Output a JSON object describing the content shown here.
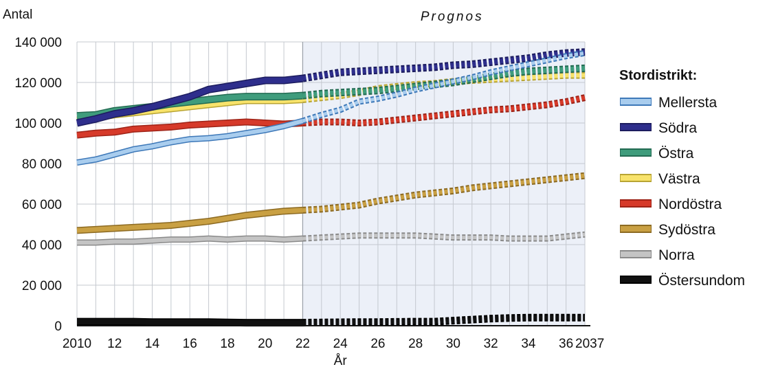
{
  "chart_data": {
    "type": "line",
    "ylabel": "Antal",
    "xlabel": "År",
    "forecast_label": "Prognos",
    "forecast_start": 2022,
    "xlim": [
      2010,
      2037
    ],
    "ylim": [
      0,
      140000
    ],
    "grid": true,
    "x": [
      2010,
      2011,
      2012,
      2013,
      2014,
      2015,
      2016,
      2017,
      2018,
      2019,
      2020,
      2021,
      2022,
      2023,
      2024,
      2025,
      2026,
      2027,
      2028,
      2029,
      2030,
      2031,
      2032,
      2033,
      2034,
      2035,
      2036,
      2037
    ],
    "x_tick_values": [
      2010,
      2012,
      2014,
      2016,
      2018,
      2020,
      2022,
      2024,
      2026,
      2028,
      2030,
      2032,
      2034,
      2036,
      2037
    ],
    "x_tick_labels": [
      "2010",
      "12",
      "14",
      "16",
      "18",
      "20",
      "22",
      "24",
      "26",
      "28",
      "30",
      "32",
      "34",
      "36",
      "2037"
    ],
    "y_tick_values": [
      0,
      20000,
      40000,
      60000,
      80000,
      100000,
      120000,
      140000
    ],
    "y_tick_labels": [
      "0",
      "20 000",
      "40 000",
      "60 000",
      "80 000",
      "100 000",
      "120 000",
      "140 000"
    ],
    "legend_title": "Stordistrikt:",
    "legend_position": "right",
    "series": [
      {
        "name": "Mellersta",
        "color": "#a9cdee",
        "edge": "#3d78b8",
        "width": 7,
        "values": [
          80500,
          82000,
          84500,
          87000,
          88500,
          90500,
          92000,
          92500,
          93500,
          95000,
          96500,
          98500,
          101000,
          104000,
          106500,
          110500,
          112000,
          114000,
          116500,
          118500,
          120500,
          122500,
          125000,
          127000,
          129000,
          131000,
          133000,
          134500
        ]
      },
      {
        "name": "Södra",
        "color": "#2e2e8c",
        "edge": "#1c1c5e",
        "width": 9,
        "values": [
          100000,
          102000,
          104500,
          106000,
          108000,
          110500,
          113000,
          116500,
          118000,
          119500,
          121000,
          121000,
          122000,
          123500,
          125000,
          125500,
          126000,
          126500,
          127000,
          127500,
          128500,
          129000,
          130000,
          131000,
          132000,
          133500,
          134500,
          135000
        ]
      },
      {
        "name": "Östra",
        "color": "#3f9c7c",
        "edge": "#236b52",
        "width": 9,
        "values": [
          103500,
          104000,
          106000,
          107000,
          108000,
          109500,
          110500,
          111500,
          112500,
          113000,
          113000,
          113000,
          113500,
          114500,
          115000,
          115500,
          116000,
          117000,
          118000,
          119000,
          120000,
          121500,
          123000,
          124500,
          125500,
          126000,
          126500,
          127000
        ]
      },
      {
        "name": "Västra",
        "color": "#f8e36b",
        "edge": "#b8a433",
        "width": 8,
        "values": [
          101500,
          102500,
          104000,
          105000,
          106000,
          107000,
          108000,
          109000,
          110000,
          111000,
          111000,
          111000,
          111500,
          112500,
          113500,
          115000,
          117000,
          118000,
          119000,
          119500,
          120500,
          121000,
          121500,
          122000,
          122500,
          123000,
          123500,
          123500
        ]
      },
      {
        "name": "Nordöstra",
        "color": "#d63a2a",
        "edge": "#9e2317",
        "width": 8,
        "values": [
          94000,
          95000,
          95500,
          97000,
          97500,
          98000,
          99000,
          99500,
          100000,
          100500,
          100000,
          99500,
          100000,
          100500,
          100500,
          100000,
          100500,
          101500,
          102500,
          103500,
          104500,
          105500,
          106500,
          107000,
          108000,
          109000,
          110500,
          112500
        ]
      },
      {
        "name": "Sydöstra",
        "color": "#c9a043",
        "edge": "#8c6a22",
        "width": 8,
        "values": [
          47000,
          47500,
          48000,
          48500,
          49000,
          49500,
          50500,
          51500,
          53000,
          54500,
          55500,
          56500,
          57000,
          57500,
          58500,
          59500,
          61500,
          63000,
          64500,
          65500,
          66500,
          68000,
          69000,
          70000,
          71000,
          72000,
          73000,
          74000
        ]
      },
      {
        "name": "Norra",
        "color": "#c4c4c4",
        "edge": "#8a8a8a",
        "width": 7,
        "values": [
          41000,
          41000,
          41500,
          41500,
          42000,
          42500,
          42500,
          43000,
          42500,
          43000,
          43000,
          42500,
          43000,
          43500,
          44000,
          44500,
          44500,
          44500,
          44500,
          44000,
          43500,
          43500,
          43500,
          43000,
          43000,
          43000,
          44000,
          45000
        ]
      },
      {
        "name": "Östersundom",
        "color": "#111111",
        "edge": "#000000",
        "width": 9,
        "values": [
          2000,
          2000,
          2000,
          2000,
          1800,
          1800,
          1800,
          1800,
          1600,
          1500,
          1500,
          1500,
          1500,
          1600,
          1700,
          1800,
          1800,
          1900,
          2000,
          2000,
          2500,
          3000,
          3500,
          3800,
          4000,
          4000,
          4000,
          4000
        ]
      }
    ]
  }
}
